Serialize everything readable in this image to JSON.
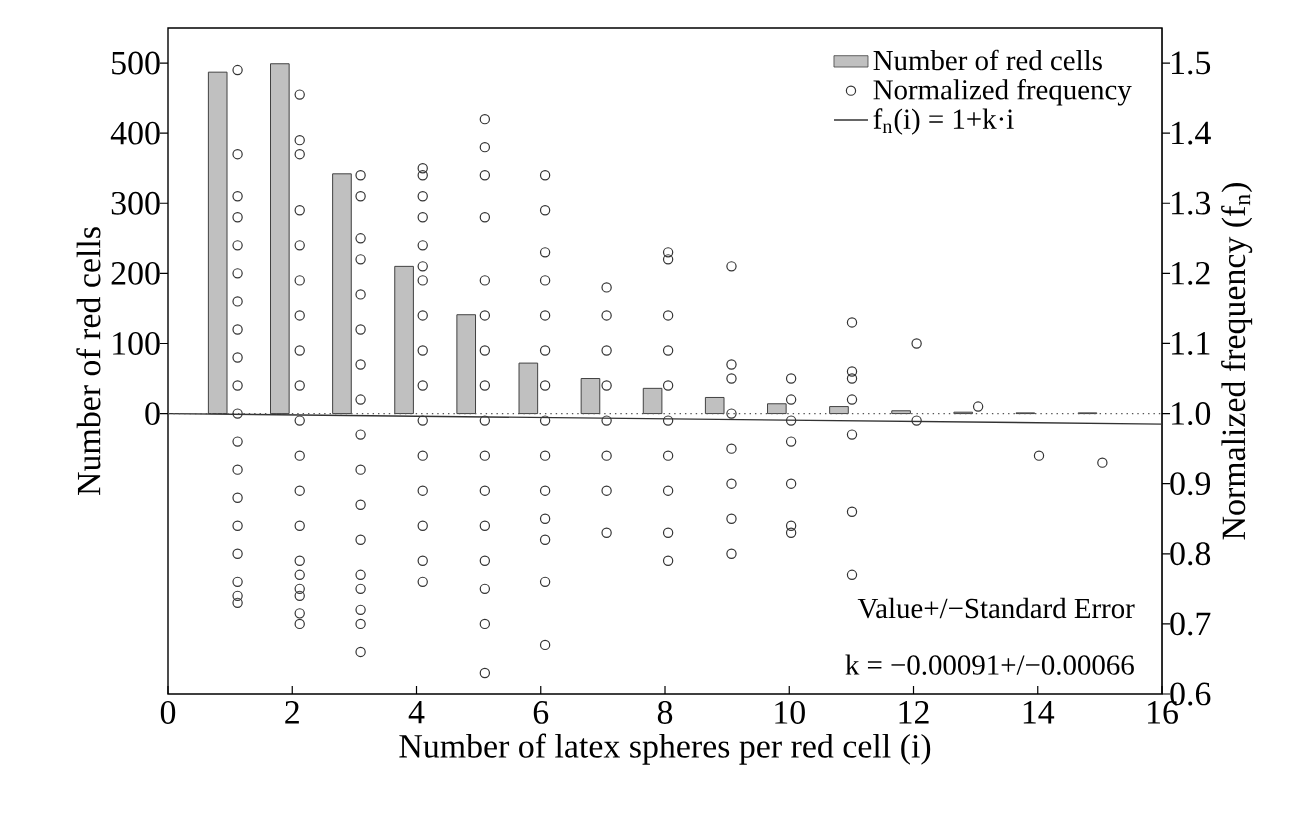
{
  "chart_data": {
    "type": "bar",
    "xlabel": "Number of latex spheres per red cell (i)",
    "ylabel": "Number of red cells",
    "y2label": "Normalized frequency (f$_{n}$)",
    "xlim": [
      0,
      16
    ],
    "xticks": [
      0,
      2,
      4,
      6,
      8,
      10,
      12,
      14,
      16
    ],
    "ylim": [
      -400,
      550
    ],
    "yticks": [
      0,
      100,
      200,
      300,
      400,
      500
    ],
    "y2lim": [
      0.6,
      1.55
    ],
    "y2ticks": [
      0.6,
      0.7,
      0.8,
      0.9,
      {
        "value": 1,
        "label": "1.0"
      },
      1.1,
      1.2,
      1.3,
      1.4,
      1.5
    ],
    "legend": "top right",
    "series": [
      {
        "name": "Number of red cells",
        "color": "#c0c0c0",
        "x": [
          0.8,
          1.8,
          2.8,
          3.8,
          4.8,
          5.8,
          6.8,
          7.8,
          8.8,
          9.8,
          10.8,
          11.8,
          12.8,
          13.8,
          14.8
        ],
        "values": [
          487,
          499,
          342,
          210,
          141,
          72,
          50,
          36,
          23,
          14,
          10,
          4,
          2,
          1,
          1
        ]
      },
      {
        "name": "Normalized frequency",
        "type": "scatter",
        "axis": "y2",
        "marker": "circle",
        "color": "#333333",
        "x": [
          1.12,
          1.12,
          1.12,
          1.12,
          1.12,
          1.12,
          1.12,
          1.12,
          1.12,
          1.12,
          1.12,
          1.12,
          1.12,
          1.12,
          1.12,
          1.12,
          1.12,
          1.12,
          1.12,
          2.12,
          2.12,
          2.12,
          2.12,
          2.12,
          2.12,
          2.12,
          2.12,
          2.12,
          2.12,
          2.12,
          2.12,
          2.12,
          2.12,
          2.12,
          2.12,
          2.12,
          2.12,
          2.12,
          3.1,
          3.1,
          3.1,
          3.1,
          3.1,
          3.1,
          3.1,
          3.1,
          3.1,
          3.1,
          3.1,
          3.1,
          3.1,
          3.1,
          3.1,
          3.1,
          3.1,
          4.1,
          4.1,
          4.1,
          4.1,
          4.1,
          4.1,
          4.1,
          4.1,
          4.1,
          4.1,
          4.1,
          4.1,
          4.1,
          4.1,
          4.1,
          4.1,
          5.1,
          5.1,
          5.1,
          5.1,
          5.1,
          5.1,
          5.1,
          5.1,
          5.1,
          5.1,
          5.1,
          5.1,
          5.1,
          5.1,
          5.1,
          5.1,
          6.07,
          6.07,
          6.07,
          6.07,
          6.07,
          6.07,
          6.07,
          6.07,
          6.07,
          6.07,
          6.07,
          6.07,
          6.07,
          6.07,
          7.06,
          7.06,
          7.06,
          7.06,
          7.06,
          7.06,
          7.06,
          7.06,
          8.05,
          8.05,
          8.05,
          8.05,
          8.05,
          8.05,
          8.05,
          8.05,
          8.05,
          8.05,
          9.07,
          9.07,
          9.07,
          9.07,
          9.07,
          9.07,
          9.07,
          9.07,
          10.03,
          10.03,
          10.03,
          10.03,
          10.03,
          10.03,
          10.03,
          11.01,
          11.01,
          11.01,
          11.01,
          11.01,
          11.01,
          11.01,
          12.05,
          12.05,
          13.04,
          14.02,
          15.04
        ],
        "values": [
          1.49,
          1.37,
          1.31,
          1.28,
          1.24,
          1.2,
          1.16,
          1.12,
          1.08,
          1.04,
          1.0,
          0.96,
          0.92,
          0.88,
          0.84,
          0.8,
          0.76,
          0.74,
          0.73,
          1.455,
          1.39,
          1.37,
          1.29,
          1.24,
          1.19,
          1.14,
          1.09,
          1.04,
          0.99,
          0.94,
          0.89,
          0.84,
          0.79,
          0.77,
          0.75,
          0.74,
          0.715,
          0.7,
          1.34,
          1.31,
          1.25,
          1.22,
          1.17,
          1.12,
          1.07,
          1.02,
          0.97,
          0.92,
          0.87,
          0.82,
          0.77,
          0.75,
          0.72,
          0.7,
          0.66,
          1.35,
          1.34,
          1.31,
          1.28,
          1.24,
          1.21,
          1.19,
          1.14,
          1.09,
          1.04,
          0.99,
          0.94,
          0.89,
          0.84,
          0.79,
          0.76,
          1.42,
          1.38,
          1.34,
          1.28,
          1.19,
          1.14,
          1.09,
          1.04,
          0.99,
          0.94,
          0.89,
          0.84,
          0.79,
          0.75,
          0.7,
          0.63,
          1.34,
          1.29,
          1.23,
          1.19,
          1.14,
          1.09,
          1.04,
          0.99,
          0.94,
          0.89,
          0.85,
          0.82,
          0.76,
          0.67,
          1.18,
          1.14,
          1.09,
          1.04,
          0.99,
          0.94,
          0.89,
          0.83,
          1.23,
          1.22,
          1.14,
          1.09,
          1.04,
          0.99,
          0.94,
          0.89,
          0.83,
          0.79,
          1.21,
          1.07,
          1.05,
          1.0,
          0.95,
          0.9,
          0.85,
          0.8,
          1.05,
          1.02,
          0.99,
          0.96,
          0.9,
          0.84,
          0.83,
          1.13,
          1.06,
          1.05,
          1.02,
          0.97,
          0.86,
          0.77,
          1.1,
          0.99,
          1.01,
          0.94,
          0.93
        ]
      },
      {
        "name": "f$_{n}$(i) = 1+k·i",
        "type": "line",
        "axis": "y2",
        "line_style": "solid",
        "color": "#333333",
        "x": [
          0,
          16
        ],
        "values": [
          1.0,
          0.985
        ]
      }
    ],
    "ref_lines": [
      {
        "axis": "y2",
        "value": 1.0,
        "line_style": "dotted",
        "color": "#555555"
      }
    ],
    "annotations": [
      "Value+/−Standard Error",
      "k = −0.00091+/−0.00066"
    ]
  }
}
